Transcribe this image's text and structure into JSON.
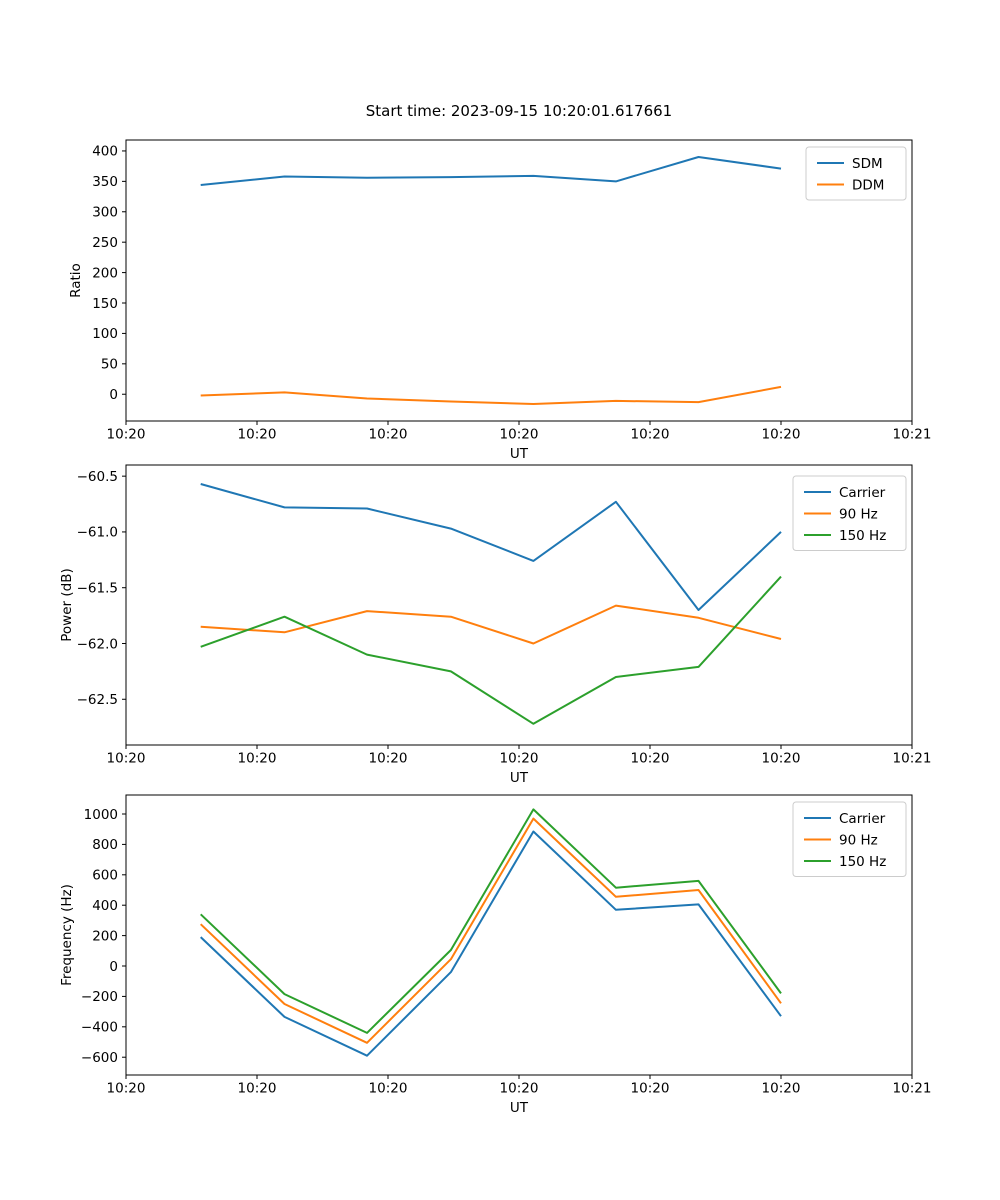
{
  "figure": {
    "title": "Start time: 2023-09-15 10:20:01.617661",
    "background": "#ffffff"
  },
  "palette": {
    "blue": "#1f77b4",
    "orange": "#ff7f0e",
    "green": "#2ca02c",
    "axis": "#000000",
    "legend_border": "#cccccc"
  },
  "chart_data": [
    {
      "type": "line",
      "title": "Start time: 2023-09-15 10:20:01.617661",
      "xlabel": "UT",
      "ylabel": "Ratio",
      "x_seconds": [
        5.7,
        12.1,
        18.4,
        24.8,
        31.1,
        37.4,
        43.7,
        50.0
      ],
      "xlim": [
        0,
        60
      ],
      "xticks": [
        0,
        10,
        20,
        30,
        40,
        50,
        60
      ],
      "xtick_labels": [
        "10:20",
        "10:20",
        "10:20",
        "10:20",
        "10:20",
        "10:20",
        "10:21"
      ],
      "ylim": [
        -44,
        418
      ],
      "yticks": [
        0,
        50,
        100,
        150,
        200,
        250,
        300,
        350,
        400
      ],
      "ytick_labels": [
        "0",
        "50",
        "100",
        "150",
        "200",
        "250",
        "300",
        "350",
        "400"
      ],
      "grid": false,
      "legend_loc": "upper right",
      "series": [
        {
          "name": "SDM",
          "color": "#1f77b4",
          "values": [
            344,
            358,
            356,
            357,
            359,
            350,
            390,
            371
          ]
        },
        {
          "name": "DDM",
          "color": "#ff7f0e",
          "values": [
            -2,
            3,
            -7,
            -12,
            -16,
            -11,
            -13,
            12
          ]
        }
      ]
    },
    {
      "type": "line",
      "title": "",
      "xlabel": "UT",
      "ylabel": "Power (dB)",
      "x_seconds": [
        5.7,
        12.1,
        18.4,
        24.8,
        31.1,
        37.4,
        43.7,
        50.0
      ],
      "xlim": [
        0,
        60
      ],
      "xticks": [
        0,
        10,
        20,
        30,
        40,
        50,
        60
      ],
      "xtick_labels": [
        "10:20",
        "10:20",
        "10:20",
        "10:20",
        "10:20",
        "10:20",
        "10:21"
      ],
      "ylim": [
        -62.91,
        -60.4
      ],
      "yticks": [
        -62.5,
        -62.0,
        -61.5,
        -61.0,
        -60.5
      ],
      "ytick_labels": [
        "−62.5",
        "−62.0",
        "−61.5",
        "−61.0",
        "−60.5"
      ],
      "grid": false,
      "legend_loc": "upper right",
      "series": [
        {
          "name": "Carrier",
          "color": "#1f77b4",
          "values": [
            -60.57,
            -60.78,
            -60.79,
            -60.97,
            -61.26,
            -60.73,
            -61.7,
            -61.0
          ]
        },
        {
          "name": "90 Hz",
          "color": "#ff7f0e",
          "values": [
            -61.85,
            -61.9,
            -61.71,
            -61.76,
            -62.0,
            -61.66,
            -61.77,
            -61.96
          ]
        },
        {
          "name": "150 Hz",
          "color": "#2ca02c",
          "values": [
            -62.03,
            -61.76,
            -62.1,
            -62.25,
            -62.72,
            -62.3,
            -62.21,
            -61.4
          ]
        }
      ]
    },
    {
      "type": "line",
      "title": "",
      "xlabel": "UT",
      "ylabel": "Frequency (Hz)",
      "x_seconds": [
        5.7,
        12.1,
        18.4,
        24.8,
        31.1,
        37.4,
        43.7,
        50.0
      ],
      "xlim": [
        0,
        60
      ],
      "xticks": [
        0,
        10,
        20,
        30,
        40,
        50,
        60
      ],
      "xtick_labels": [
        "10:20",
        "10:20",
        "10:20",
        "10:20",
        "10:20",
        "10:20",
        "10:21"
      ],
      "ylim": [
        -717,
        1125
      ],
      "yticks": [
        -600,
        -400,
        -200,
        0,
        200,
        400,
        600,
        800,
        1000
      ],
      "ytick_labels": [
        "−600",
        "−400",
        "−200",
        "0",
        "200",
        "400",
        "600",
        "800",
        "1000"
      ],
      "grid": false,
      "legend_loc": "upper right",
      "series": [
        {
          "name": "Carrier",
          "color": "#1f77b4",
          "values": [
            190,
            -335,
            -590,
            -40,
            885,
            370,
            405,
            -330
          ]
        },
        {
          "name": "90 Hz",
          "color": "#ff7f0e",
          "values": [
            275,
            -250,
            -505,
            45,
            970,
            455,
            500,
            -245
          ]
        },
        {
          "name": "150 Hz",
          "color": "#2ca02c",
          "values": [
            340,
            -185,
            -440,
            105,
            1030,
            515,
            560,
            -180
          ]
        }
      ]
    }
  ]
}
